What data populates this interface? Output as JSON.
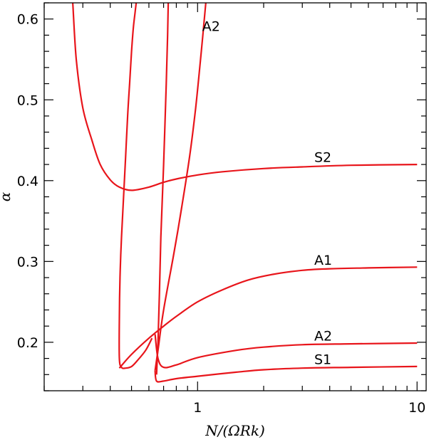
{
  "chart_data": {
    "type": "line",
    "title": "",
    "xlabel": "N/(ΩRk)",
    "ylabel": "α",
    "x_scale": "log",
    "xlim": [
      0.2,
      11
    ],
    "ylim": [
      0.14,
      0.62
    ],
    "grid": false,
    "legend": "none",
    "x_ticks": [
      {
        "value": 1,
        "label": "1"
      },
      {
        "value": 10,
        "label": "10"
      }
    ],
    "y_ticks": [
      {
        "value": 0.2,
        "label": "0.2"
      },
      {
        "value": 0.3,
        "label": "0.3"
      },
      {
        "value": 0.4,
        "label": "0.4"
      },
      {
        "value": 0.5,
        "label": "0.5"
      },
      {
        "value": 0.6,
        "label": "0.6"
      }
    ],
    "line_color": "#e8151b",
    "series": [
      {
        "x": [
          0.62,
          0.58,
          0.53,
          0.5,
          0.47,
          0.45,
          0.44,
          0.44,
          0.443,
          0.45,
          0.46,
          0.47,
          0.48,
          0.49,
          0.5,
          0.51,
          0.52,
          0.525
        ],
        "y": [
          0.205,
          0.19,
          0.177,
          0.17,
          0.168,
          0.169,
          0.18,
          0.23,
          0.28,
          0.33,
          0.38,
          0.43,
          0.48,
          0.52,
          0.56,
          0.59,
          0.61,
          0.62
        ]
      },
      {
        "x": [
          0.27,
          0.28,
          0.3,
          0.33,
          0.36,
          0.4,
          0.44,
          0.5,
          0.6,
          0.7,
          0.8,
          1.0,
          1.3,
          2,
          3,
          5,
          10
        ],
        "y": [
          0.62,
          0.55,
          0.49,
          0.45,
          0.42,
          0.401,
          0.392,
          0.388,
          0.392,
          0.398,
          0.402,
          0.407,
          0.411,
          0.415,
          0.417,
          0.419,
          0.42
        ]
      },
      {
        "x": [
          0.44,
          0.5,
          0.6,
          0.7,
          0.8,
          1.0,
          1.3,
          1.7,
          2.2,
          3,
          4,
          6,
          10
        ],
        "y": [
          0.168,
          0.185,
          0.205,
          0.22,
          0.232,
          0.25,
          0.265,
          0.277,
          0.284,
          0.289,
          0.291,
          0.292,
          0.293
        ]
      },
      {
        "x": [
          0.64,
          0.66,
          0.7,
          0.8,
          1.0,
          1.5,
          2,
          3,
          5,
          10
        ],
        "y": [
          0.21,
          0.18,
          0.169,
          0.172,
          0.181,
          0.19,
          0.194,
          0.197,
          0.198,
          0.199
        ]
      },
      {
        "x": [
          0.65,
          0.66,
          0.67,
          0.68,
          0.7,
          0.72,
          0.73,
          0.735
        ],
        "y": [
          0.16,
          0.2,
          0.26,
          0.33,
          0.42,
          0.52,
          0.58,
          0.62
        ]
      },
      {
        "x": [
          0.64,
          0.65,
          0.7,
          0.8,
          1.0,
          1.5,
          2,
          3,
          5,
          10
        ],
        "y": [
          0.165,
          0.152,
          0.152,
          0.155,
          0.158,
          0.163,
          0.166,
          0.168,
          0.169,
          0.17
        ]
      },
      {
        "x": [
          0.64,
          0.66,
          0.7,
          0.78,
          0.85,
          0.92,
          0.98,
          1.04,
          1.09
        ],
        "y": [
          0.165,
          0.19,
          0.24,
          0.31,
          0.37,
          0.43,
          0.49,
          0.56,
          0.62
        ]
      }
    ],
    "annotations": [
      {
        "text": "A2",
        "x": 1.05,
        "y": 0.585
      },
      {
        "text": "S2",
        "x": 3.4,
        "y": 0.423
      },
      {
        "text": "A1",
        "x": 3.4,
        "y": 0.296
      },
      {
        "text": "A2",
        "x": 3.4,
        "y": 0.202
      },
      {
        "text": "S1",
        "x": 3.4,
        "y": 0.173
      }
    ]
  }
}
